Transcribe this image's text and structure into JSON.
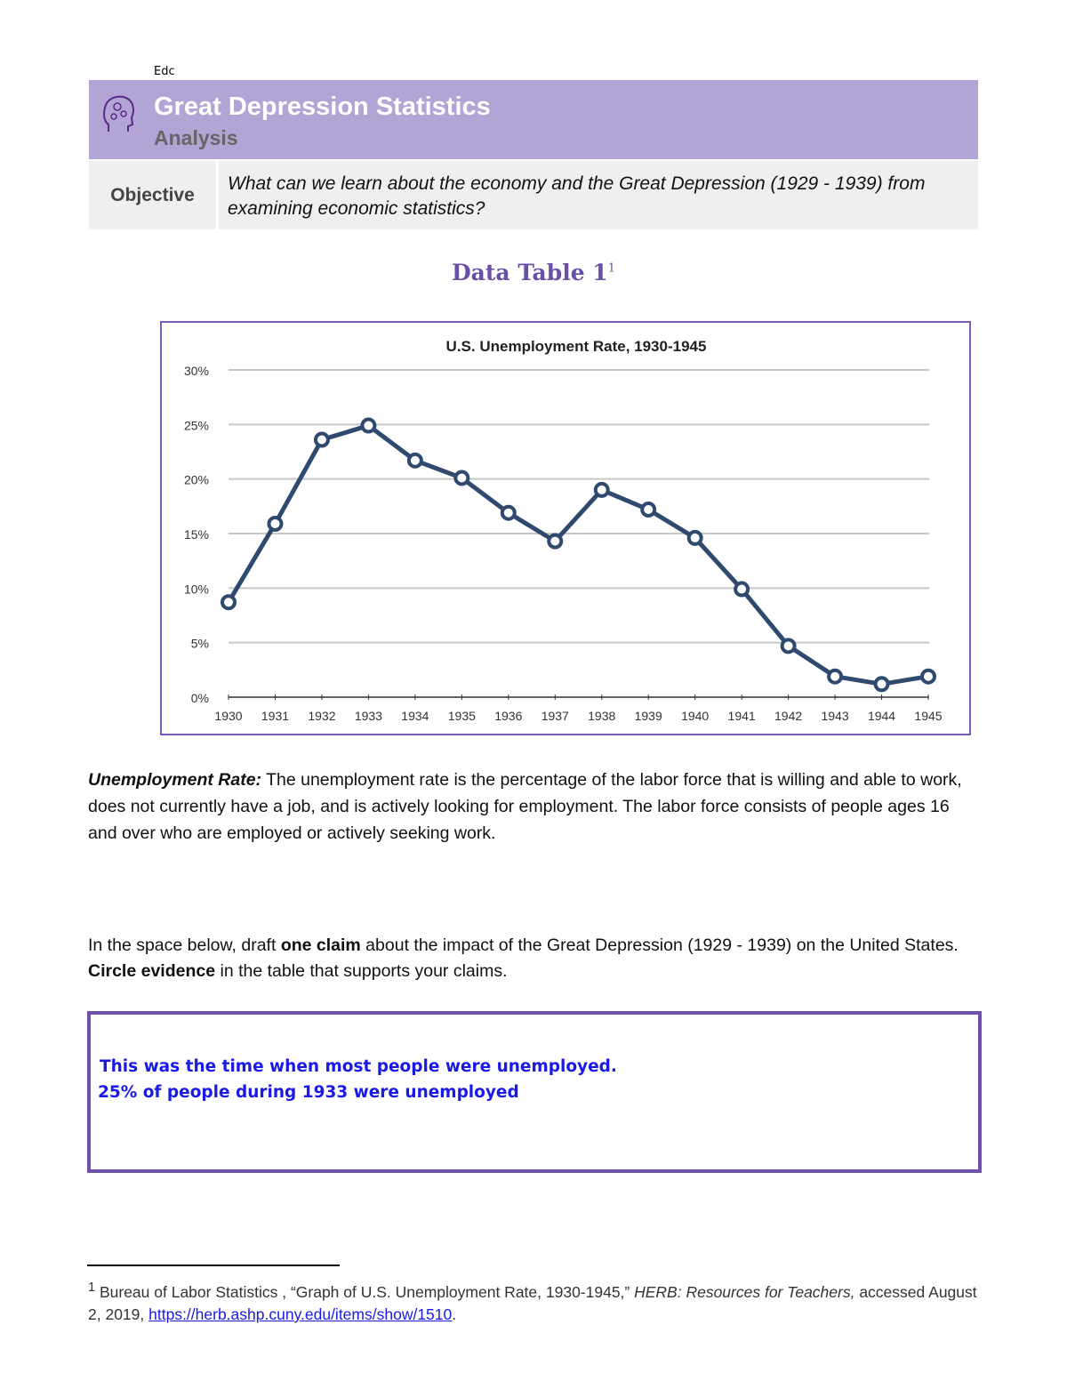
{
  "header": {
    "org": "Edc",
    "title": "Great Depression Statistics",
    "subtitle": "Analysis",
    "icon": "brain-head-icon",
    "color": "#b2a4d4"
  },
  "objective": {
    "label": "Objective",
    "text": "What can we learn about the economy and the Great Depression (1929 - 1939) from examining economic statistics?"
  },
  "data_table": {
    "title": "Data Table 1",
    "footnote_ref": "1"
  },
  "chart_data": {
    "type": "line",
    "title": "U.S. Unemployment Rate, 1930-1945",
    "x": [
      "1930",
      "1931",
      "1932",
      "1933",
      "1934",
      "1935",
      "1936",
      "1937",
      "1938",
      "1939",
      "1940",
      "1941",
      "1942",
      "1943",
      "1944",
      "1945"
    ],
    "series": [
      {
        "values": [
          8.7,
          15.9,
          23.6,
          24.9,
          21.7,
          20.1,
          16.9,
          14.3,
          19.0,
          17.2,
          14.6,
          9.9,
          4.7,
          1.9,
          1.2,
          1.9
        ]
      }
    ],
    "yticks": [
      "0%",
      "5%",
      "10%",
      "15%",
      "20%",
      "25%",
      "30%"
    ],
    "ylim": [
      0,
      30
    ],
    "grid": true,
    "color": "#2f4a6e"
  },
  "definition": {
    "term": "Unemployment Rate:",
    "text": " The unemployment rate is the percentage of the labor force that is willing and able to work, does not currently have a job, and is actively looking for employment. The labor force consists of people ages 16 and over who are employed or actively seeking work."
  },
  "prompt": {
    "p1": "In the space below, draft ",
    "b1": "one claim",
    "p2": " about the impact of the Great Depression (1929 - 1939) on the United States.  ",
    "b2": "Circle evidence",
    "p3": " in the table that supports your claims."
  },
  "answer": {
    "line1": "This was the time when most people were unemployed.",
    "line2": "25% of people during 1933 were unemployed"
  },
  "footnote": {
    "num": "1",
    "source": " Bureau of Labor Statistics , “Graph of U.S. Unemployment Rate, 1930-1945,” ",
    "publication": "HERB: Resources for Teachers,",
    "accessed": " accessed August 2, 2019, ",
    "link": "https://herb.ashp.cuny.edu/items/show/1510",
    "end": "."
  }
}
